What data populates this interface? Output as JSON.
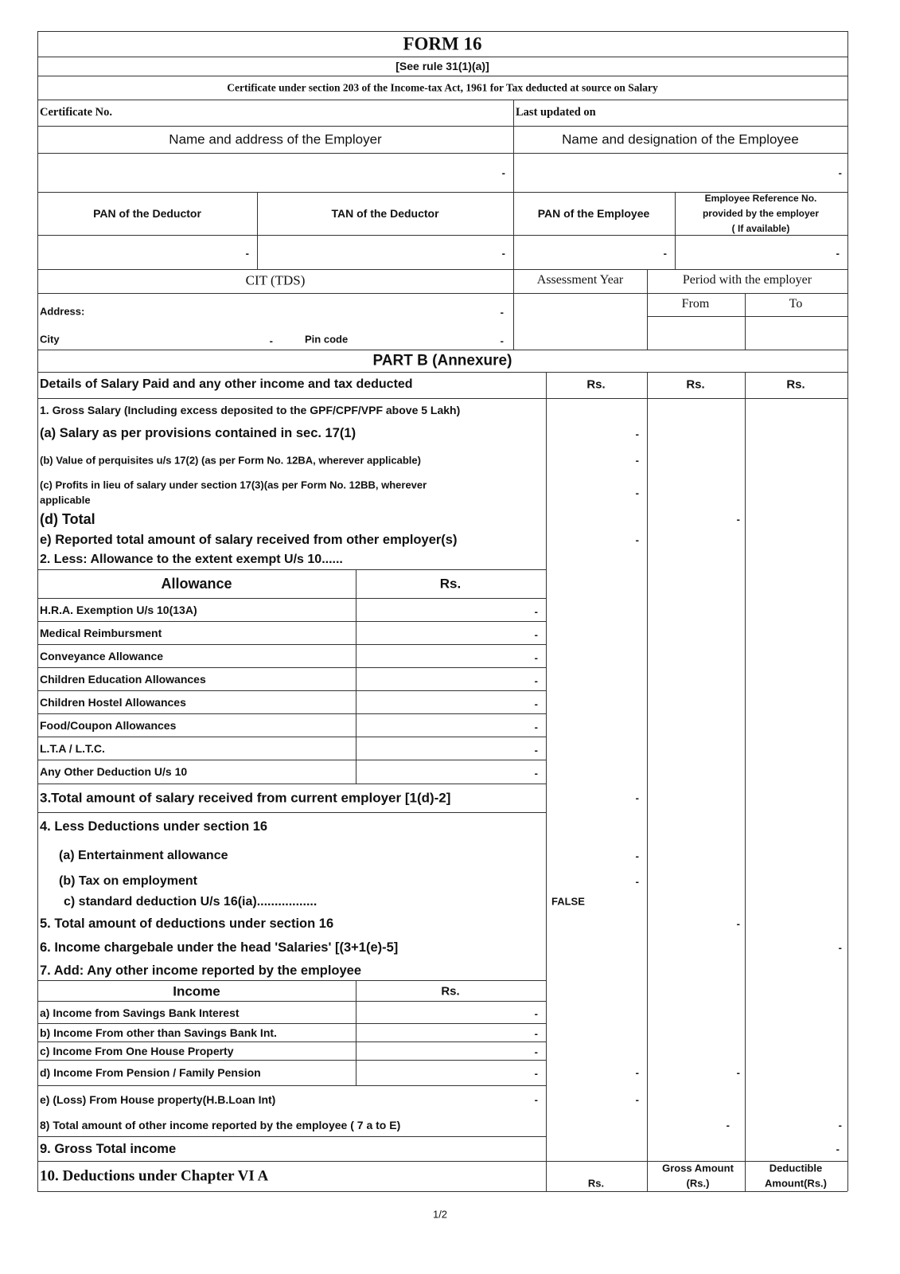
{
  "header": {
    "title": "FORM 16",
    "rule": "[See rule 31(1)(a)]",
    "certificate_text": "Certificate under section 203 of the Income-tax Act, 1961 for Tax deducted at source on Salary",
    "certificate_no_label": "Certificate No.",
    "last_updated_label": "Last updated on",
    "employer_name_label": "Name and address of the Employer",
    "employee_name_label": "Name and designation of the Employee",
    "pan_deductor_label": "PAN of the Deductor",
    "tan_deductor_label": "TAN of the Deductor",
    "pan_employee_label": "PAN of the Employee",
    "emp_ref_line1": "Employee Reference No.",
    "emp_ref_line2": "provided by the employer",
    "emp_ref_line3": "( If available)",
    "cit_label": "CIT (TDS)",
    "assessment_year_label": "Assessment Year",
    "period_label": "Period with the employer",
    "from_label": "From",
    "to_label": "To",
    "address_label": "Address:",
    "city_label": "City",
    "pin_label": "Pin code"
  },
  "empty_value": "-",
  "part_b": {
    "title": "PART B (Annexure)",
    "details_label": "Details of Salary Paid and any other income and tax deducted",
    "rs": "Rs.",
    "gross_salary": "1.  Gross Salary (Including excess deposited to the GPF/CPF/VPF above 5 Lakh)",
    "item_a": "(a) Salary as per provisions contained in sec. 17(1)",
    "item_b": "(b) Value of perquisites u/s 17(2) (as per Form No. 12BA, wherever applicable)",
    "item_c_line1": "(c) Profits in lieu of salary under section 17(3)(as per Form No. 12BB, wherever",
    "item_c_line2": "applicable",
    "item_d": "(d) Total",
    "item_e": "e) Reported total amount of salary received from other employer(s)",
    "item_2": "2. Less: Allowance to the extent exempt U/s 10......",
    "allowance_header": "Allowance",
    "allowances": [
      "H.R.A. Exemption U/s 10(13A)",
      "Medical Reimbursment",
      "Conveyance Allowance",
      "Children Education Allowances",
      "Children Hostel Allowances",
      "Food/Coupon Allowances",
      "L.T.A / L.T.C.",
      "Any Other Deduction U/s 10"
    ],
    "item_3": "3.Total amount of salary received from current employer [1(d)-2]",
    "item_4": "4. Less  Deductions under section 16",
    "item_4a": "(a) Entertainment allowance",
    "item_4b": "(b) Tax on employment",
    "item_4c": "c)  standard deduction U/s 16(ia).................",
    "item_4c_value": "FALSE",
    "item_5": "5. Total amount of deductions under section 16",
    "item_6": "6. Income chargebale under the head 'Salaries' [(3+1(e)-5]",
    "item_7": "7. Add: Any other income reported by the employee",
    "income_header": "Income",
    "incomes": [
      "a) Income from Savings Bank Interest",
      "b) Income From other than Savings Bank Int.",
      "c) Income From One House Property",
      "d) Income From Pension / Family Pension"
    ],
    "item_7e": "e) (Loss) From House property(H.B.Loan Int)",
    "item_8": "8)  Total amount of other income reported by the employee ( 7 a to E)",
    "item_9": "9. Gross Total income",
    "item_10": "10. Deductions under Chapter VI A",
    "gross_amount_line1": "Gross Amount",
    "gross_amount_line2": "(Rs.)",
    "deductible_line1": "Deductible",
    "deductible_line2": "Amount(Rs.)"
  },
  "footer": {
    "page": "1/2"
  }
}
